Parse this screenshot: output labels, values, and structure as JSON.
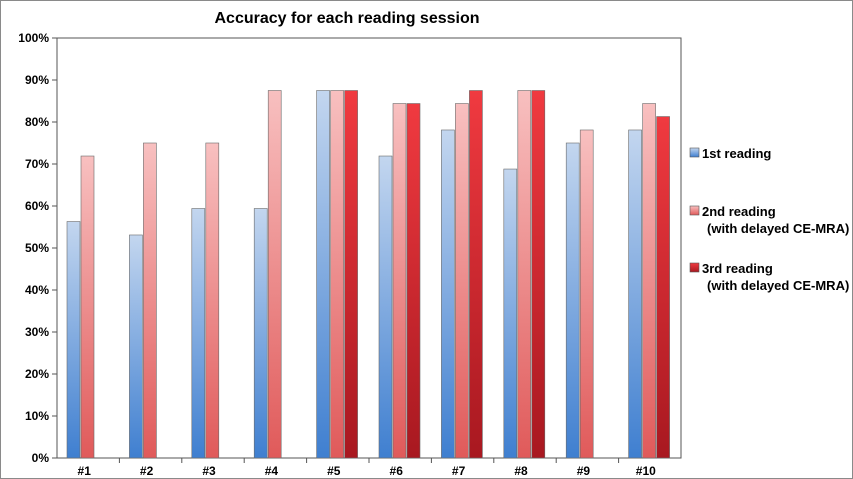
{
  "chart_data": {
    "type": "bar",
    "title": "Accuracy for each reading session",
    "xlabel": "",
    "ylabel": "",
    "categories": [
      "#1",
      "#2",
      "#3",
      "#4",
      "#5",
      "#6",
      "#7",
      "#8",
      "#9",
      "#10"
    ],
    "ylim": [
      0,
      100
    ],
    "yticks": [
      "0%",
      "10%",
      "20%",
      "30%",
      "40%",
      "50%",
      "60%",
      "70%",
      "80%",
      "90%",
      "100%"
    ],
    "grid": false,
    "legend_position": "right",
    "series": [
      {
        "name": "1st reading",
        "color_top": "#c3d6ef",
        "color_bottom": "#3f7fd0",
        "values": [
          56.3,
          53.1,
          59.4,
          59.4,
          87.5,
          71.9,
          78.1,
          68.8,
          75.0,
          78.1
        ]
      },
      {
        "name": "2nd reading",
        "name_line2": "(with delayed CE-MRA)",
        "color_top": "#f8c0c0",
        "color_bottom": "#e05a5a",
        "values": [
          71.9,
          75.0,
          75.0,
          87.5,
          87.5,
          84.4,
          84.4,
          87.5,
          78.1,
          84.4
        ]
      },
      {
        "name": "3rd reading",
        "name_line2": "(with delayed CE-MRA)",
        "color_top": "#f03a40",
        "color_bottom": "#a81820",
        "values": [
          null,
          null,
          null,
          null,
          87.5,
          84.4,
          87.5,
          87.5,
          null,
          81.3
        ]
      }
    ]
  }
}
